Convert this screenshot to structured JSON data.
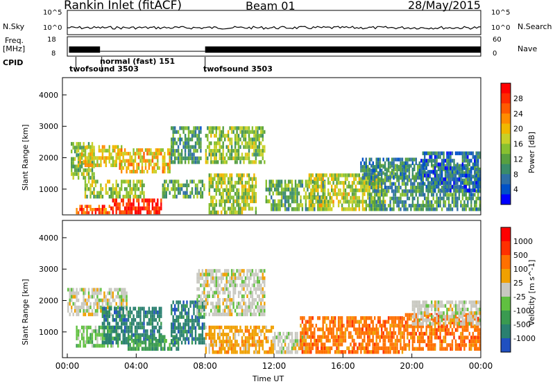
{
  "header": {
    "station": "Rankin Inlet (fitACF)",
    "beam": "Beam 01",
    "date": "28/May/2015"
  },
  "strips": {
    "nsky_label": "N.Sky",
    "nsky_ticks": [
      "10^5",
      "10^0"
    ],
    "nsearch_label": "N.Search",
    "nsearch_ticks": [
      "10^5",
      "10^0"
    ],
    "freq_label_1": "Freq.",
    "freq_label_2": "[MHz]",
    "freq_ticks": [
      "18",
      "8"
    ],
    "nave_label": "Nave",
    "nave_ticks": [
      "60",
      "0"
    ],
    "cpid_label": "CPID",
    "cpid_segments": [
      {
        "label": "twofsound 3503",
        "start_h": 0.5,
        "end_h": 2.0
      },
      {
        "label": "normal (fast) 151",
        "start_h": 2.0,
        "end_h": 8.0
      },
      {
        "label": "twofsound 3503",
        "start_h": 8.0,
        "end_h": 24.0
      }
    ]
  },
  "chart_data": [
    {
      "type": "heatmap",
      "name": "power",
      "ylabel": "Slant Range [km]",
      "yticks": [
        "1000",
        "2000",
        "3000",
        "4000"
      ],
      "ylim": [
        180,
        4550
      ],
      "xlim_hours": [
        0,
        24
      ],
      "colorbar_label": "Power [dB]",
      "colorbar_ticks": [
        "4",
        "8",
        "12",
        "16",
        "20",
        "24",
        "28"
      ],
      "colorbar_range": [
        0,
        31
      ],
      "colors": [
        "#0000ff",
        "#0050c8",
        "#2e6ea6",
        "#3a8c6a",
        "#58a040",
        "#88c030",
        "#c8d028",
        "#f0b800",
        "#ff8c00",
        "#ff5a00",
        "#ff2a00",
        "#ff0000"
      ],
      "bands": [
        {
          "h0": 0.2,
          "h1": 1.6,
          "r0": 1300,
          "r1": 2500,
          "v": 14
        },
        {
          "h0": 0.6,
          "h1": 3.2,
          "r0": 1700,
          "r1": 2400,
          "v": 18
        },
        {
          "h0": 3.0,
          "h1": 6.0,
          "r0": 1500,
          "r1": 2300,
          "v": 19
        },
        {
          "h0": 1.0,
          "h1": 4.5,
          "r0": 700,
          "r1": 1300,
          "v": 15
        },
        {
          "h0": 2.5,
          "h1": 5.5,
          "r0": 200,
          "r1": 700,
          "v": 28
        },
        {
          "h0": 0.5,
          "h1": 2.5,
          "r0": 200,
          "r1": 500,
          "v": 25
        },
        {
          "h0": 5.5,
          "h1": 8.0,
          "r0": 700,
          "r1": 1300,
          "v": 12
        },
        {
          "h0": 6.0,
          "h1": 7.8,
          "r0": 1800,
          "r1": 3000,
          "v": 10
        },
        {
          "h0": 8.0,
          "h1": 11.5,
          "r0": 1800,
          "r1": 3000,
          "v": 14
        },
        {
          "h0": 8.2,
          "h1": 11.0,
          "r0": 200,
          "r1": 1500,
          "v": 15
        },
        {
          "h0": 11.5,
          "h1": 15.0,
          "r0": 300,
          "r1": 1300,
          "v": 12
        },
        {
          "h0": 14.0,
          "h1": 18.5,
          "r0": 300,
          "r1": 1500,
          "v": 16
        },
        {
          "h0": 17.5,
          "h1": 24.0,
          "r0": 300,
          "r1": 1800,
          "v": 10
        },
        {
          "h0": 17.0,
          "h1": 20.5,
          "r0": 1300,
          "r1": 2000,
          "v": 8
        },
        {
          "h0": 20.5,
          "h1": 24.0,
          "r0": 900,
          "r1": 2200,
          "v": 6
        }
      ]
    },
    {
      "type": "heatmap",
      "name": "velocity",
      "ylabel": "Slant Range [km]",
      "yticks": [
        "1000",
        "2000",
        "3000",
        "4000"
      ],
      "ylim": [
        180,
        4550
      ],
      "xlim_hours": [
        0,
        24
      ],
      "colorbar_label": "Velocity [m s^-1]",
      "colorbar_ticks": [
        "1000",
        "500",
        "100",
        "25",
        "-25",
        "-100",
        "-500",
        "-1000"
      ],
      "colors": [
        "#2050c0",
        "#2a8070",
        "#3a9a50",
        "#60c040",
        "#c8c8c0",
        "#f0a000",
        "#ff7000",
        "#ff3000",
        "#ff0000"
      ],
      "bands": [
        {
          "h0": 0.0,
          "h1": 3.5,
          "r0": 1500,
          "r1": 2400,
          "c": 4
        },
        {
          "h0": 0.5,
          "h1": 3.0,
          "r0": 500,
          "r1": 1200,
          "c": 3
        },
        {
          "h0": 2.0,
          "h1": 5.5,
          "r0": 600,
          "r1": 1800,
          "c": 1
        },
        {
          "h0": 3.5,
          "h1": 6.5,
          "r0": 400,
          "r1": 900,
          "c": 2
        },
        {
          "h0": 6.0,
          "h1": 8.0,
          "r0": 600,
          "r1": 2000,
          "c": 1
        },
        {
          "h0": 7.5,
          "h1": 11.5,
          "r0": 1500,
          "r1": 3000,
          "c": 4
        },
        {
          "h0": 8.0,
          "h1": 12.0,
          "r0": 300,
          "r1": 1200,
          "c": 5
        },
        {
          "h0": 12.0,
          "h1": 14.0,
          "r0": 300,
          "r1": 1000,
          "c": 4
        },
        {
          "h0": 13.5,
          "h1": 19.5,
          "r0": 300,
          "r1": 1500,
          "c": 6
        },
        {
          "h0": 19.5,
          "h1": 24.0,
          "r0": 400,
          "r1": 1600,
          "c": 6
        },
        {
          "h0": 20.0,
          "h1": 24.0,
          "r0": 1200,
          "r1": 2000,
          "c": 4
        }
      ]
    }
  ],
  "xaxis": {
    "ticks": [
      "00:00",
      "04:00",
      "08:00",
      "12:00",
      "16:00",
      "20:00",
      "00:00"
    ],
    "label": "Time UT"
  }
}
